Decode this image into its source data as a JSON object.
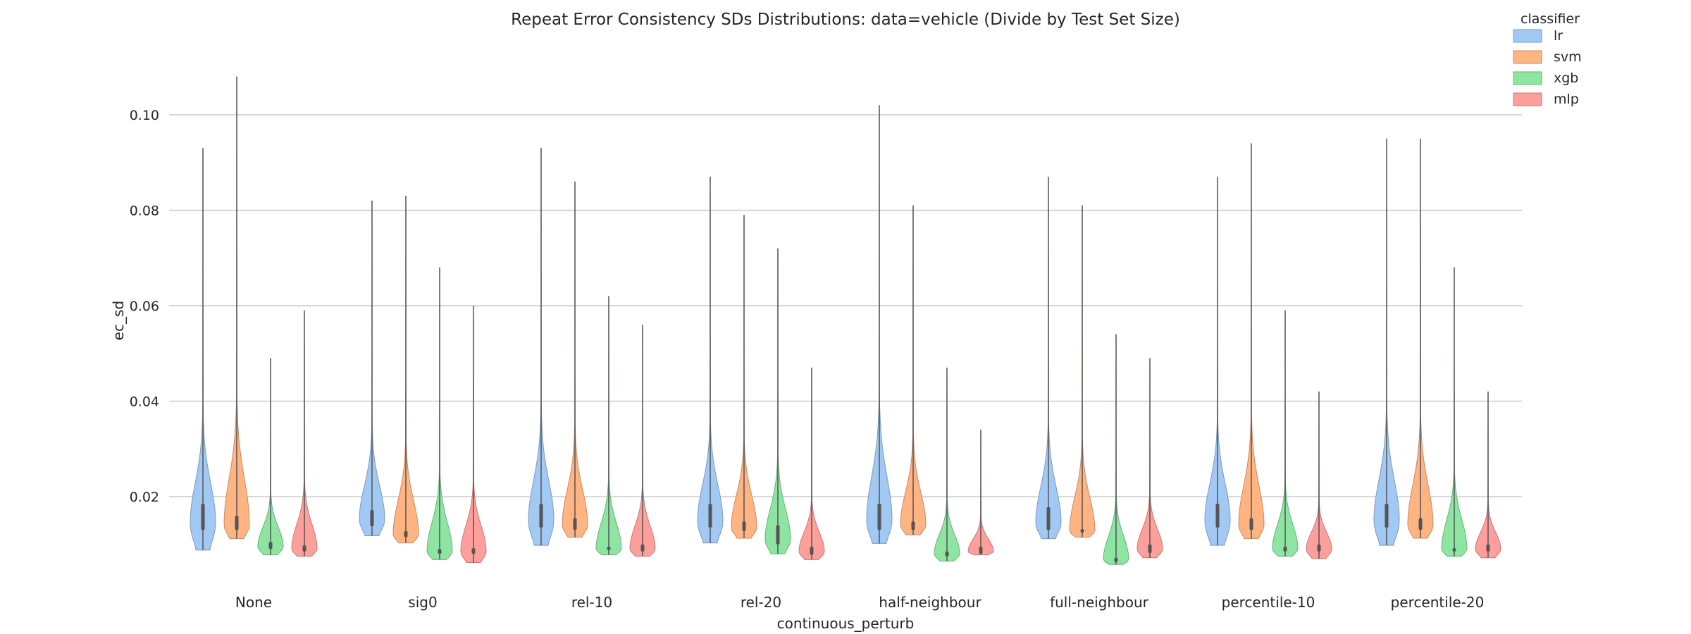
{
  "chart_data": {
    "type": "violin",
    "title": "Repeat Error Consistency SDs Distributions: data=vehicle (Divide by Test Set Size)",
    "xlabel": "continuous_perturb",
    "ylabel": "ec_sd",
    "ylim": [
      0.0035,
      0.117
    ],
    "yticks": [
      0.02,
      0.04,
      0.06,
      0.08,
      0.1
    ],
    "ytick_labels": [
      "0.02",
      "0.04",
      "0.06",
      "0.08",
      "0.10"
    ],
    "grid": "horizontal",
    "legend": {
      "title": "classifier",
      "placement": "top-right"
    },
    "categories": [
      "None",
      "sig0",
      "rel-10",
      "rel-20",
      "half-neighbour",
      "full-neighbour",
      "percentile-10",
      "percentile-20"
    ],
    "series": [
      {
        "name": "lr",
        "color": "#a1c9f4",
        "edge": "#7d9bbd",
        "min": [
          0.0088,
          0.0118,
          0.0098,
          0.0103,
          0.0102,
          0.0112,
          0.0098,
          0.0098
        ],
        "max": [
          0.093,
          0.082,
          0.093,
          0.087,
          0.102,
          0.087,
          0.087,
          0.095
        ],
        "median": [
          0.0145,
          0.0152,
          0.015,
          0.0148,
          0.015,
          0.0145,
          0.015,
          0.015
        ],
        "q1": [
          0.013,
          0.0138,
          0.0135,
          0.0135,
          0.013,
          0.013,
          0.0135,
          0.0135
        ],
        "q3": [
          0.0185,
          0.0172,
          0.0185,
          0.0185,
          0.0185,
          0.0178,
          0.0185,
          0.0185
        ]
      },
      {
        "name": "svm",
        "color": "#ffb482",
        "edge": "#c48c66",
        "min": [
          0.0112,
          0.0103,
          0.0115,
          0.0113,
          0.012,
          0.0115,
          0.0112,
          0.0113
        ],
        "max": [
          0.108,
          0.083,
          0.086,
          0.079,
          0.081,
          0.081,
          0.094,
          0.095
        ],
        "median": [
          0.014,
          0.012,
          0.014,
          0.0135,
          0.014,
          0.0128,
          0.014,
          0.014
        ],
        "q1": [
          0.013,
          0.0115,
          0.013,
          0.0128,
          0.013,
          0.0125,
          0.013,
          0.013
        ],
        "q3": [
          0.016,
          0.0128,
          0.0155,
          0.0148,
          0.0148,
          0.0132,
          0.0155,
          0.0155
        ]
      },
      {
        "name": "xgb",
        "color": "#8de5a1",
        "edge": "#6ab27d",
        "min": [
          0.0078,
          0.0068,
          0.0078,
          0.008,
          0.0065,
          0.0058,
          0.0075,
          0.0075
        ],
        "max": [
          0.049,
          0.068,
          0.062,
          0.072,
          0.047,
          0.054,
          0.059,
          0.068
        ],
        "median": [
          0.0095,
          0.0085,
          0.009,
          0.011,
          0.008,
          0.0068,
          0.009,
          0.009
        ],
        "q1": [
          0.009,
          0.008,
          0.0088,
          0.01,
          0.0075,
          0.0063,
          0.0085,
          0.0085
        ],
        "q3": [
          0.0105,
          0.009,
          0.0095,
          0.014,
          0.0085,
          0.0072,
          0.0095,
          0.0092
        ]
      },
      {
        "name": "mlp",
        "color": "#ff9f9b",
        "edge": "#c47b78",
        "min": [
          0.0075,
          0.0062,
          0.0075,
          0.0068,
          0.0078,
          0.0072,
          0.007,
          0.0072
        ],
        "max": [
          0.059,
          0.06,
          0.056,
          0.047,
          0.034,
          0.049,
          0.042,
          0.042
        ],
        "median": [
          0.009,
          0.0085,
          0.009,
          0.0085,
          0.0085,
          0.009,
          0.009,
          0.009
        ],
        "q1": [
          0.0085,
          0.008,
          0.0085,
          0.0078,
          0.008,
          0.0082,
          0.0085,
          0.0085
        ],
        "q3": [
          0.0098,
          0.0092,
          0.01,
          0.0095,
          0.0095,
          0.01,
          0.01,
          0.01
        ]
      }
    ]
  }
}
